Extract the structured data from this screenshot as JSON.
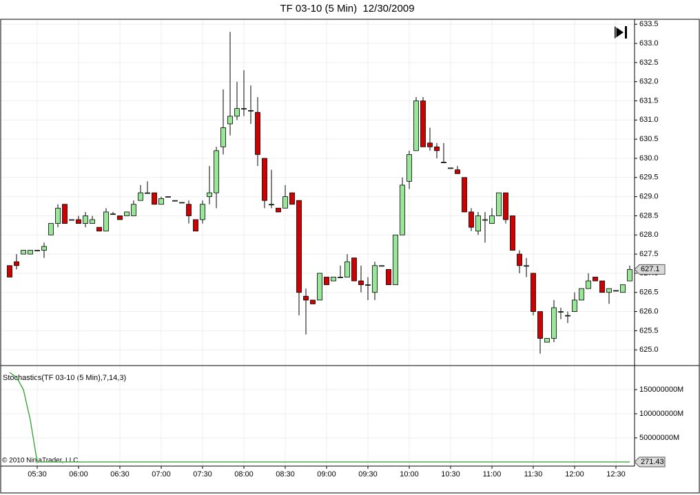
{
  "chart_data": [
    {
      "type": "candlestick",
      "title": "TF 03-10 (5 Min)  12/30/2009",
      "categories": [
        null,
        null,
        null,
        null,
        "05:30",
        null,
        null,
        null,
        null,
        null,
        "06:00",
        null,
        null,
        null,
        null,
        null,
        "06:30",
        null,
        null,
        null,
        null,
        null,
        "07:00",
        null,
        null,
        null,
        null,
        null,
        "07:30",
        null,
        null,
        null,
        null,
        null,
        "08:00",
        null,
        null,
        null,
        null,
        null,
        "08:30",
        null,
        null,
        null,
        null,
        null,
        "09:00",
        null,
        null,
        null,
        null,
        null,
        "09:30",
        null,
        null,
        null,
        null,
        null,
        "10:00",
        null,
        null,
        null,
        null,
        null,
        "10:30",
        null,
        null,
        null,
        null,
        null,
        "11:00",
        null,
        null,
        null,
        null,
        null,
        "11:30",
        null,
        null,
        null,
        null,
        null,
        "12:00",
        null,
        null,
        null,
        null,
        null,
        "12:30",
        null,
        null
      ],
      "open": [
        627.2,
        627.3,
        627.5,
        627.5,
        627.6,
        627.6,
        628.0,
        628.3,
        628.8,
        628.4,
        628.4,
        628.3,
        628.3,
        628.2,
        628.1,
        628.55,
        628.5,
        628.5,
        628.5,
        628.9,
        629.1,
        629.1,
        628.8,
        629.0,
        628.9,
        628.85,
        628.8,
        628.4,
        628.4,
        629.0,
        629.1,
        630.3,
        630.9,
        631.1,
        631.3,
        631.25,
        631.2,
        630.0,
        628.8,
        628.7,
        628.7,
        629.1,
        628.9,
        626.4,
        626.3,
        626.3,
        626.9,
        626.8,
        626.9,
        626.9,
        627.4,
        626.8,
        626.7,
        626.5,
        627.2,
        627.1,
        626.7,
        628.0,
        629.4,
        630.2,
        631.5,
        630.4,
        630.3,
        629.9,
        629.75,
        629.7,
        629.5,
        628.6,
        628.1,
        628.4,
        628.3,
        628.5,
        629.1,
        628.5,
        627.5,
        627.2,
        627.0,
        626.0,
        625.2,
        625.3,
        626.0,
        625.9,
        626.0,
        626.3,
        626.6,
        626.9,
        626.8,
        626.5,
        626.55,
        626.5,
        626.8
      ],
      "high": [
        627.2,
        627.5,
        627.6,
        627.6,
        627.6,
        627.8,
        628.3,
        628.8,
        628.8,
        628.4,
        628.5,
        628.6,
        628.5,
        628.2,
        628.7,
        628.6,
        628.5,
        628.6,
        628.9,
        629.3,
        629.4,
        629.1,
        629.0,
        629.0,
        628.9,
        628.85,
        628.9,
        628.4,
        628.9,
        629.8,
        630.3,
        631.8,
        633.3,
        632.0,
        632.3,
        631.9,
        631.6,
        630.0,
        629.7,
        628.7,
        629.3,
        629.1,
        628.9,
        626.6,
        626.3,
        627.0,
        626.9,
        626.9,
        627.2,
        627.5,
        627.4,
        627.2,
        626.9,
        627.3,
        627.2,
        627.1,
        628.0,
        629.5,
        630.2,
        631.6,
        631.6,
        630.8,
        630.4,
        630.4,
        629.75,
        629.8,
        629.5,
        628.7,
        628.6,
        628.6,
        628.7,
        629.1,
        629.1,
        628.5,
        627.6,
        627.4,
        627.0,
        626.0,
        625.3,
        626.3,
        626.1,
        626.0,
        626.5,
        626.6,
        627.0,
        626.9,
        626.8,
        626.6,
        626.55,
        626.7,
        627.2
      ],
      "low": [
        626.9,
        627.1,
        627.5,
        627.5,
        627.6,
        627.4,
        628.0,
        628.2,
        628.3,
        628.4,
        628.3,
        628.2,
        628.3,
        628.1,
        628.1,
        628.55,
        628.4,
        628.5,
        628.5,
        628.9,
        629.1,
        628.8,
        628.8,
        629.0,
        628.9,
        628.85,
        628.3,
        628.1,
        628.3,
        628.8,
        628.7,
        630.1,
        630.6,
        631.0,
        631.1,
        630.9,
        629.8,
        628.7,
        628.7,
        628.6,
        628.7,
        628.8,
        625.9,
        625.4,
        626.2,
        626.3,
        626.7,
        626.8,
        626.9,
        626.9,
        626.8,
        626.5,
        626.3,
        626.3,
        627.2,
        626.7,
        626.7,
        628.0,
        629.2,
        630.2,
        630.3,
        630.2,
        630.0,
        629.9,
        629.75,
        629.6,
        628.6,
        628.1,
        628.0,
        627.8,
        628.3,
        628.5,
        628.3,
        627.6,
        627.0,
        626.9,
        625.9,
        624.9,
        625.2,
        625.2,
        625.8,
        625.7,
        626.0,
        626.3,
        626.6,
        626.8,
        626.5,
        626.2,
        626.55,
        626.5,
        626.8
      ],
      "close": [
        626.9,
        627.2,
        627.6,
        627.6,
        627.6,
        627.7,
        628.3,
        628.7,
        628.3,
        628.4,
        628.3,
        628.5,
        628.4,
        628.1,
        628.6,
        628.55,
        628.4,
        628.6,
        628.8,
        629.1,
        629.1,
        628.8,
        628.95,
        629.0,
        628.9,
        628.85,
        628.5,
        628.1,
        628.8,
        629.1,
        630.2,
        630.8,
        631.1,
        631.3,
        631.3,
        631.25,
        630.1,
        628.9,
        628.8,
        628.6,
        629.0,
        628.8,
        626.5,
        626.3,
        626.2,
        627.0,
        626.7,
        626.9,
        626.9,
        627.3,
        626.8,
        626.7,
        626.7,
        627.2,
        627.2,
        626.7,
        628.0,
        629.3,
        630.1,
        631.5,
        630.3,
        630.3,
        630.2,
        629.9,
        629.75,
        629.6,
        628.6,
        628.2,
        628.5,
        628.4,
        628.5,
        629.1,
        628.4,
        627.6,
        627.2,
        627.2,
        626.0,
        625.3,
        625.3,
        626.1,
        626.0,
        625.9,
        626.3,
        626.6,
        626.8,
        626.8,
        626.5,
        626.6,
        626.55,
        626.7,
        627.1
      ],
      "up_color": "#98e698",
      "down_color": "#d00000",
      "ylim": [
        624.59,
        633.63
      ],
      "yticks": [
        633.5,
        {
          "value": 633.0,
          "label": "633.0"
        },
        632.5,
        {
          "value": 632.0,
          "label": "632.0"
        },
        631.5,
        {
          "value": 631.0,
          "label": "631.0"
        },
        630.5,
        {
          "value": 630.0,
          "label": "630.0"
        },
        629.5,
        {
          "value": 629.0,
          "label": "629.0"
        },
        628.5,
        {
          "value": 628.0,
          "label": "628.0"
        },
        627.5,
        {
          "value": 627.0,
          "label": "627.0"
        },
        626.5,
        {
          "value": 626.0,
          "label": "626.0"
        },
        625.5,
        {
          "value": 625.0,
          "label": "625.0"
        }
      ],
      "last_value": 627.1,
      "grid": true
    },
    {
      "type": "line",
      "label": "Stochastics(TF 03-10 (5 Min),7,14,3)",
      "color": "#2aa02a",
      "values": [
        185700000,
        175700000,
        150000000,
        87100000,
        271.43,
        271.43,
        271.43,
        271.43,
        271.43,
        271.43,
        271.43,
        271.43,
        271.43,
        271.43,
        271.43,
        271.43,
        271.43,
        271.43,
        271.43,
        271.43,
        271.43,
        271.43,
        271.43,
        271.43,
        271.43,
        271.43,
        271.43,
        271.43,
        271.43,
        271.43,
        271.43,
        271.43,
        271.43,
        271.43,
        271.43,
        271.43,
        271.43,
        271.43,
        271.43,
        271.43,
        271.43,
        271.43,
        271.43,
        271.43,
        271.43,
        271.43,
        271.43,
        271.43,
        271.43,
        271.43,
        271.43,
        271.43,
        271.43,
        271.43,
        271.43,
        271.43,
        271.43,
        271.43,
        271.43,
        271.43,
        271.43,
        271.43,
        271.43,
        271.43,
        271.43,
        271.43,
        271.43,
        271.43,
        271.43,
        271.43,
        271.43,
        271.43,
        271.43,
        271.43,
        271.43,
        271.43,
        271.43,
        271.43,
        271.43,
        271.43,
        271.43,
        271.43,
        271.43,
        271.43,
        271.43,
        271.43,
        271.43,
        271.43,
        271.43,
        271.43,
        271.43
      ],
      "ylim": [
        -8570000,
        200000000
      ],
      "yticks": [
        {
          "value": 150000000,
          "label": "150000000M"
        },
        {
          "value": 100000000,
          "label": "100000000M"
        },
        {
          "value": 50000000,
          "label": "50000000M"
        }
      ],
      "last_value": 271.43,
      "grid": true
    }
  ],
  "copyright": "© 2010 NinjaTrader, LLC"
}
